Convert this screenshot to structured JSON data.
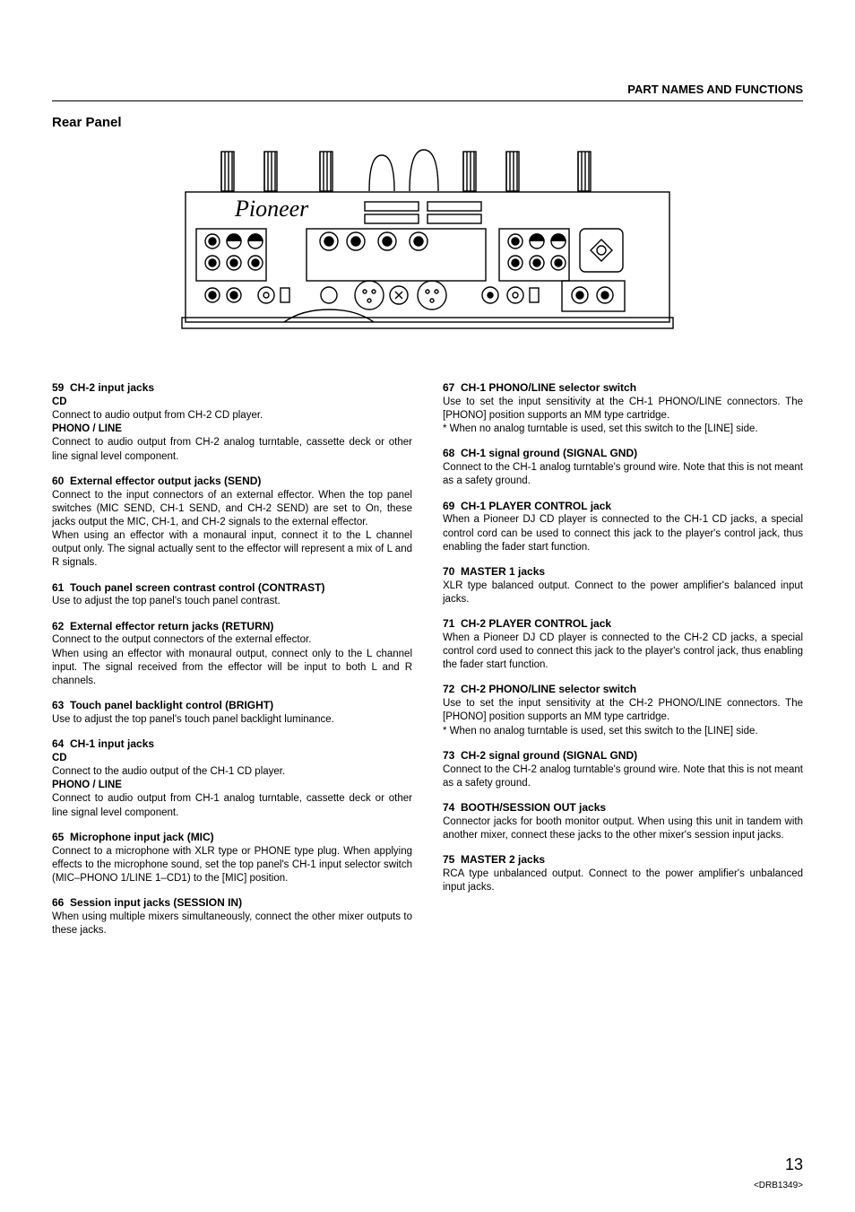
{
  "header": {
    "right": "PART NAMES AND FUNCTIONS"
  },
  "section_title": "Rear Panel",
  "page_number": "13",
  "doc_id": "<DRB1349>",
  "left": [
    {
      "num": "59",
      "title": "CH-2 input jacks",
      "parts": [
        {
          "sub": "CD",
          "text": "Connect to audio output from CH-2 CD player."
        },
        {
          "sub": "PHONO / LINE",
          "text": "Connect to audio output from CH-2 analog turntable, cassette deck or other line signal level component."
        }
      ]
    },
    {
      "num": "60",
      "title": "External effector output jacks (SEND)",
      "parts": [
        {
          "text": "Connect to the input connectors of an external effector. When the top panel switches (MIC SEND, CH-1 SEND, and CH-2 SEND) are set to On, these jacks output the MIC, CH-1, and CH-2 signals to the external effector."
        },
        {
          "text": "When using an effector with a monaural input, connect it to the L channel output only. The signal actually sent to the effector will represent a mix of L and R signals."
        }
      ]
    },
    {
      "num": "61",
      "title": "Touch panel screen contrast control (CONTRAST)",
      "parts": [
        {
          "text": "Use to adjust the top panel's touch panel contrast."
        }
      ]
    },
    {
      "num": "62",
      "title": "External effector return jacks (RETURN)",
      "parts": [
        {
          "text": "Connect to the output connectors of the external effector."
        },
        {
          "text": "When using an effector with monaural output, connect only to the L channel input. The signal received from the effector will be input to both L and R channels."
        }
      ]
    },
    {
      "num": "63",
      "title": "Touch panel backlight control (BRIGHT)",
      "parts": [
        {
          "text": "Use to adjust the top panel's touch panel backlight luminance."
        }
      ]
    },
    {
      "num": "64",
      "title": "CH-1 input jacks",
      "parts": [
        {
          "sub": "CD",
          "text": "Connect to the audio output of the CH-1 CD player."
        },
        {
          "sub": "PHONO / LINE",
          "text": "Connect to audio output from CH-1 analog turntable, cassette deck or other line signal level component."
        }
      ]
    },
    {
      "num": "65",
      "title": "Microphone input jack (MIC)",
      "parts": [
        {
          "text": "Connect to a microphone with XLR type or PHONE type plug. When applying effects to the microphone sound, set the top panel's CH-1 input selector switch (MIC–PHONO 1/LINE 1–CD1) to the [MIC] position."
        }
      ]
    },
    {
      "num": "66",
      "title": "Session input jacks (SESSION IN)",
      "parts": [
        {
          "text": "When using multiple mixers simultaneously, connect the other mixer outputs to these jacks."
        }
      ]
    }
  ],
  "right": [
    {
      "num": "67",
      "title": "CH-1 PHONO/LINE selector switch",
      "parts": [
        {
          "text": "Use to set the input sensitivity at the CH-1 PHONO/LINE connectors. The [PHONO] position supports an MM type cartridge."
        },
        {
          "note": "* When no analog turntable is used, set this switch to the [LINE] side."
        }
      ]
    },
    {
      "num": "68",
      "title": "CH-1 signal ground (SIGNAL GND)",
      "parts": [
        {
          "text": "Connect to the CH-1 analog turntable's ground wire. Note that this is not meant as a safety ground."
        }
      ]
    },
    {
      "num": "69",
      "title": "CH-1 PLAYER CONTROL jack",
      "parts": [
        {
          "text": "When a Pioneer DJ CD player is connected to the CH-1 CD jacks, a special control cord can be used to connect this jack to the player's control jack, thus enabling the fader start function."
        }
      ]
    },
    {
      "num": "70",
      "title": "MASTER 1 jacks",
      "parts": [
        {
          "text": "XLR type balanced output. Connect to the power amplifier's balanced input jacks."
        }
      ]
    },
    {
      "num": "71",
      "title": "CH-2 PLAYER CONTROL jack",
      "parts": [
        {
          "text": "When a Pioneer DJ CD player is connected to the CH-2 CD jacks, a special control cord used to connect this jack to the player's control jack, thus enabling the fader start function."
        }
      ]
    },
    {
      "num": "72",
      "title": "CH-2 PHONO/LINE selector switch",
      "parts": [
        {
          "text": "Use to set the input sensitivity at the CH-2 PHONO/LINE connectors. The [PHONO] position supports an MM type cartridge."
        },
        {
          "note": "* When no analog turntable is used, set this switch to the [LINE] side."
        }
      ]
    },
    {
      "num": "73",
      "title": "CH-2 signal ground (SIGNAL GND)",
      "parts": [
        {
          "text": "Connect to the CH-2 analog turntable's ground wire. Note that this is not meant as a safety ground."
        }
      ]
    },
    {
      "num": "74",
      "title": "BOOTH/SESSION OUT jacks",
      "parts": [
        {
          "text": "Connector jacks for booth monitor output. When using this unit in tandem with another mixer, connect these jacks to the other mixer's session input jacks."
        }
      ]
    },
    {
      "num": "75",
      "title": "MASTER 2 jacks",
      "parts": [
        {
          "text": "RCA type unbalanced output. Connect to the power amplifier's unbalanced input jacks."
        }
      ]
    }
  ]
}
